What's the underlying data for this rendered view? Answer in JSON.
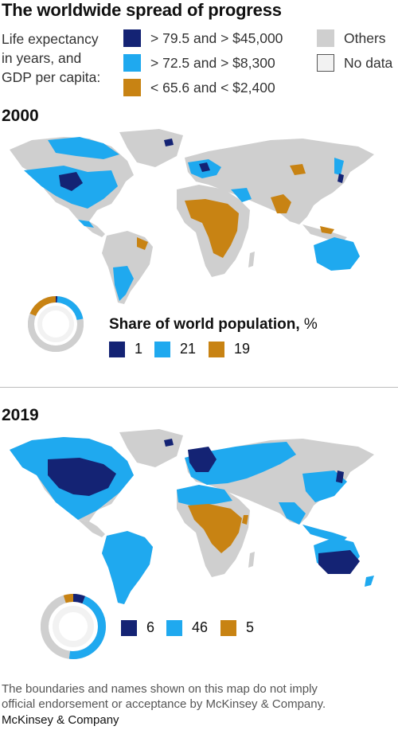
{
  "title": "The worldwide spread of progress",
  "legend": {
    "intro_lines": [
      "Life expectancy",
      "in years, and",
      "GDP per capita:"
    ],
    "items": [
      {
        "label": "> 79.5 and > $45,000",
        "color": "#142374"
      },
      {
        "label": "> 72.5 and > $8,300",
        "color": "#1fa9ef"
      },
      {
        "label": "< 65.6 and < $2,400",
        "color": "#c88313"
      },
      {
        "label": "Others",
        "color": "#cfcfcf"
      },
      {
        "label": "No data",
        "color": "#f2f2f2"
      }
    ]
  },
  "share_title": "Share of world population,",
  "share_unit": "%",
  "sections": [
    {
      "year": "2000",
      "shares": [
        {
          "value": 1,
          "color": "#142374"
        },
        {
          "value": 21,
          "color": "#1fa9ef"
        },
        {
          "value": 19,
          "color": "#c88313"
        }
      ]
    },
    {
      "year": "2019",
      "shares": [
        {
          "value": 6,
          "color": "#142374"
        },
        {
          "value": 46,
          "color": "#1fa9ef"
        },
        {
          "value": 5,
          "color": "#c88313"
        }
      ]
    }
  ],
  "colors": {
    "others": "#cfcfcf",
    "no_data": "#f2f2f2",
    "dark": "#142374",
    "light": "#1fa9ef",
    "gold": "#c88313"
  },
  "footnote_lines": [
    "The boundaries and names shown on this map do not imply",
    "official endorsement or acceptance by McKinsey & Company."
  ],
  "brand": "McKinsey & Company"
}
